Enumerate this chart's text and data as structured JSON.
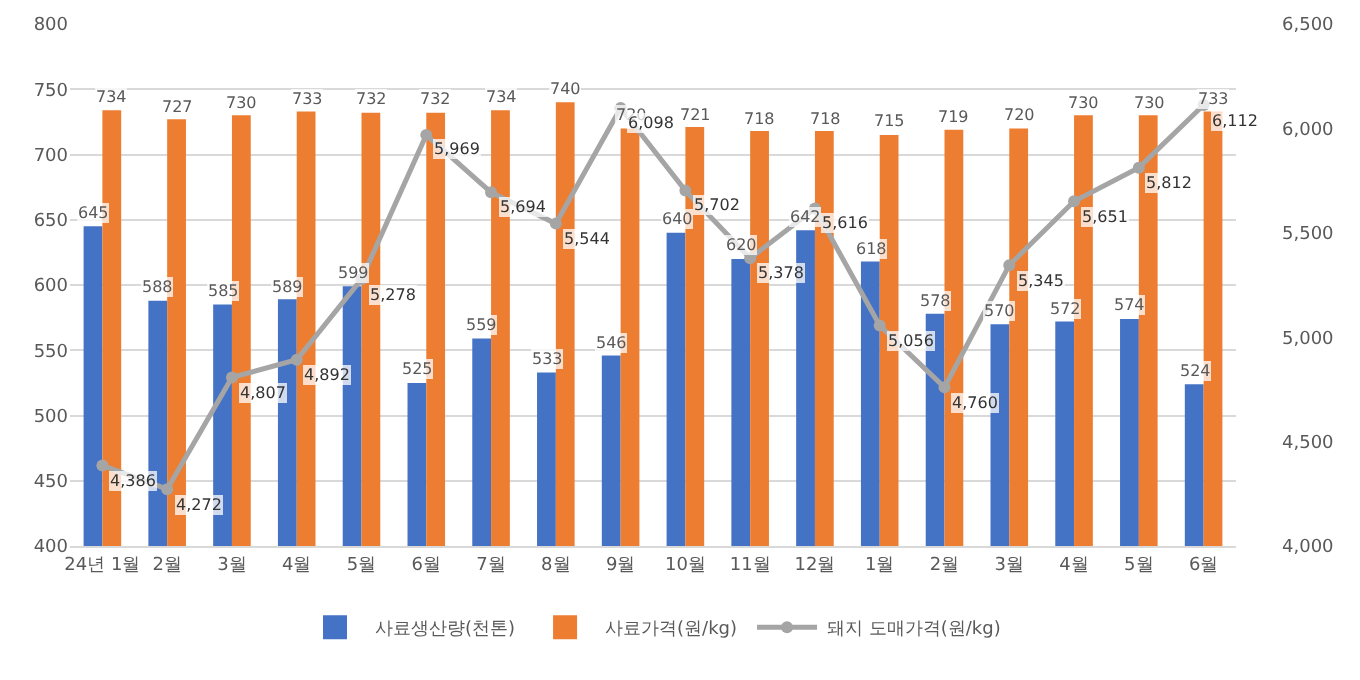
{
  "chart_data": {
    "type": "bar",
    "categories": [
      "24년 1월",
      "2월",
      "3월",
      "4월",
      "5월",
      "6월",
      "7월",
      "8월",
      "9월",
      "10월",
      "11월",
      "12월",
      "1월",
      "2월",
      "3월",
      "4월",
      "5월",
      "6월"
    ],
    "series": [
      {
        "name": "사료생산량(천톤)",
        "color": "#4472c4",
        "values": [
          645,
          588,
          585,
          589,
          599,
          525,
          559,
          533,
          546,
          640,
          620,
          642,
          618,
          578,
          570,
          572,
          574,
          524
        ]
      },
      {
        "name": "사료가격(원/kg)",
        "color": "#ed7d31",
        "values": [
          734,
          727,
          730,
          733,
          732,
          732,
          734,
          740,
          720,
          721,
          718,
          718,
          715,
          719,
          720,
          730,
          730,
          733
        ]
      },
      {
        "name": "돼지 도매가격(원/kg)",
        "type": "line",
        "axis": "y2",
        "color": "#a5a5a5",
        "values": [
          4386,
          4272,
          4807,
          4892,
          5278,
          5969,
          5694,
          5544,
          6098,
          5702,
          5378,
          5616,
          5056,
          4760,
          5345,
          5651,
          5812,
          6112
        ],
        "value_labels": [
          "4,386",
          "4,272",
          "4,807",
          "4,892",
          "5,278",
          "5,969",
          "5,694",
          "5,544",
          "6,098",
          "5,702",
          "5,378",
          "5,616",
          "5,056",
          "4,760",
          "5,345",
          "5,651",
          "5,812",
          "6,112"
        ]
      }
    ],
    "ylim": [
      400,
      800
    ],
    "yticks": [
      400,
      450,
      500,
      550,
      600,
      650,
      700,
      750,
      800
    ],
    "y2lim": [
      4000,
      6500
    ],
    "y2ticks": [
      {
        "value": 4000,
        "label": "4,000"
      },
      {
        "value": 4500,
        "label": "4,500"
      },
      {
        "value": 5000,
        "label": "5,000"
      },
      {
        "value": 5500,
        "label": "5,500"
      },
      {
        "value": 6000,
        "label": "6,000"
      },
      {
        "value": 6500,
        "label": "6,500"
      }
    ],
    "grid": "y",
    "legend": "bottom",
    "marker": "circle",
    "line_style": "solid",
    "data_labels": true
  }
}
